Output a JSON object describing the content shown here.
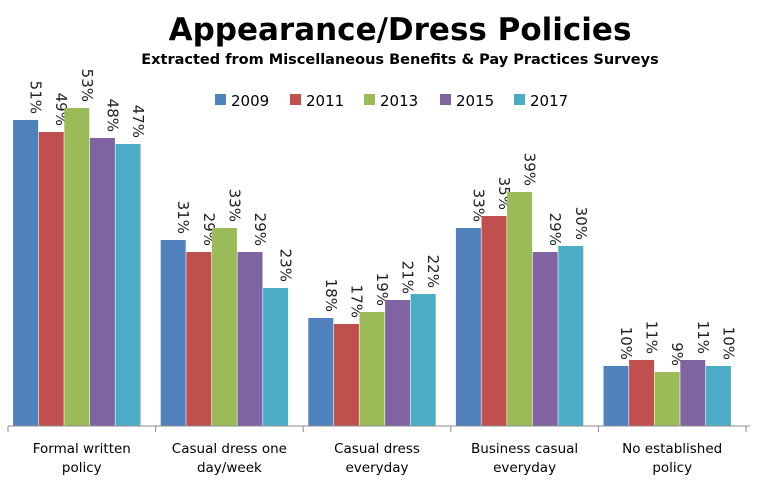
{
  "chart_data": {
    "type": "bar",
    "title": "Appearance/Dress Policies",
    "subtitle": "Extracted from Miscellaneous Benefits & Pay Practices Surveys",
    "categories": [
      [
        "Formal written",
        "policy"
      ],
      [
        "Casual dress one",
        "day/week"
      ],
      [
        "Casual dress",
        "everyday"
      ],
      [
        "Business casual",
        "everyday"
      ],
      [
        "No established",
        "policy"
      ]
    ],
    "series": [
      {
        "name": "2009",
        "color": "#4F81BD",
        "values": [
          51,
          31,
          18,
          33,
          10
        ]
      },
      {
        "name": "2011",
        "color": "#C0504D",
        "values": [
          49,
          29,
          17,
          35,
          11
        ]
      },
      {
        "name": "2013",
        "color": "#9BBB59",
        "values": [
          53,
          33,
          19,
          39,
          9
        ]
      },
      {
        "name": "2015",
        "color": "#8064A2",
        "values": [
          48,
          29,
          21,
          29,
          11
        ]
      },
      {
        "name": "2017",
        "color": "#4BACC6",
        "values": [
          47,
          23,
          22,
          30,
          10
        ]
      }
    ],
    "value_suffix": "%",
    "ylim": [
      0,
      60
    ],
    "legend_position": "top-center",
    "grid": false
  }
}
